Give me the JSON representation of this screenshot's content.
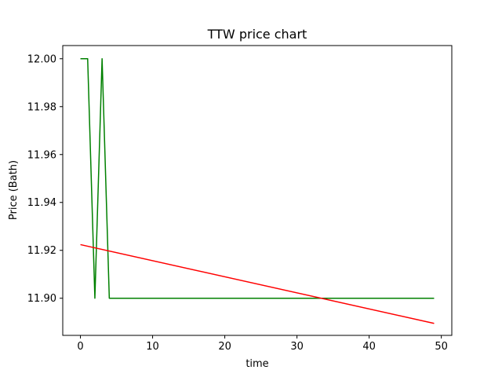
{
  "chart_data": {
    "type": "line",
    "title": "TTW price chart",
    "xlabel": "time",
    "ylabel": "Price (Bath)",
    "xlim": [
      -2.45,
      51.45
    ],
    "ylim": [
      11.8845,
      12.0055
    ],
    "x_ticks": [
      0,
      10,
      20,
      30,
      40,
      50
    ],
    "x_tick_labels": [
      "0",
      "10",
      "20",
      "30",
      "40",
      "50"
    ],
    "y_ticks": [
      11.9,
      11.92,
      11.94,
      11.96,
      11.98,
      12.0
    ],
    "y_tick_labels": [
      "11.90",
      "11.92",
      "11.94",
      "11.96",
      "11.98",
      "12.00"
    ],
    "grid": false,
    "legend": "none",
    "series": [
      {
        "color": "#008000",
        "x": [
          0,
          1,
          2,
          3,
          4,
          5,
          6,
          7,
          8,
          9,
          10,
          11,
          12,
          13,
          14,
          15,
          16,
          17,
          18,
          19,
          20,
          21,
          22,
          23,
          24,
          25,
          26,
          27,
          28,
          29,
          30,
          31,
          32,
          33,
          34,
          35,
          36,
          37,
          38,
          39,
          40,
          41,
          42,
          43,
          44,
          45,
          46,
          47,
          48,
          49
        ],
        "y": [
          12.0,
          12.0,
          11.9,
          12.0,
          11.9,
          11.9,
          11.9,
          11.9,
          11.9,
          11.9,
          11.9,
          11.9,
          11.9,
          11.9,
          11.9,
          11.9,
          11.9,
          11.9,
          11.9,
          11.9,
          11.9,
          11.9,
          11.9,
          11.9,
          11.9,
          11.9,
          11.9,
          11.9,
          11.9,
          11.9,
          11.9,
          11.9,
          11.9,
          11.9,
          11.9,
          11.9,
          11.9,
          11.9,
          11.9,
          11.9,
          11.9,
          11.9,
          11.9,
          11.9,
          11.9,
          11.9,
          11.9,
          11.9,
          11.9,
          11.9
        ]
      },
      {
        "color": "#ff0000",
        "x": [
          0,
          49
        ],
        "y": [
          11.9224,
          11.8895
        ]
      }
    ]
  }
}
